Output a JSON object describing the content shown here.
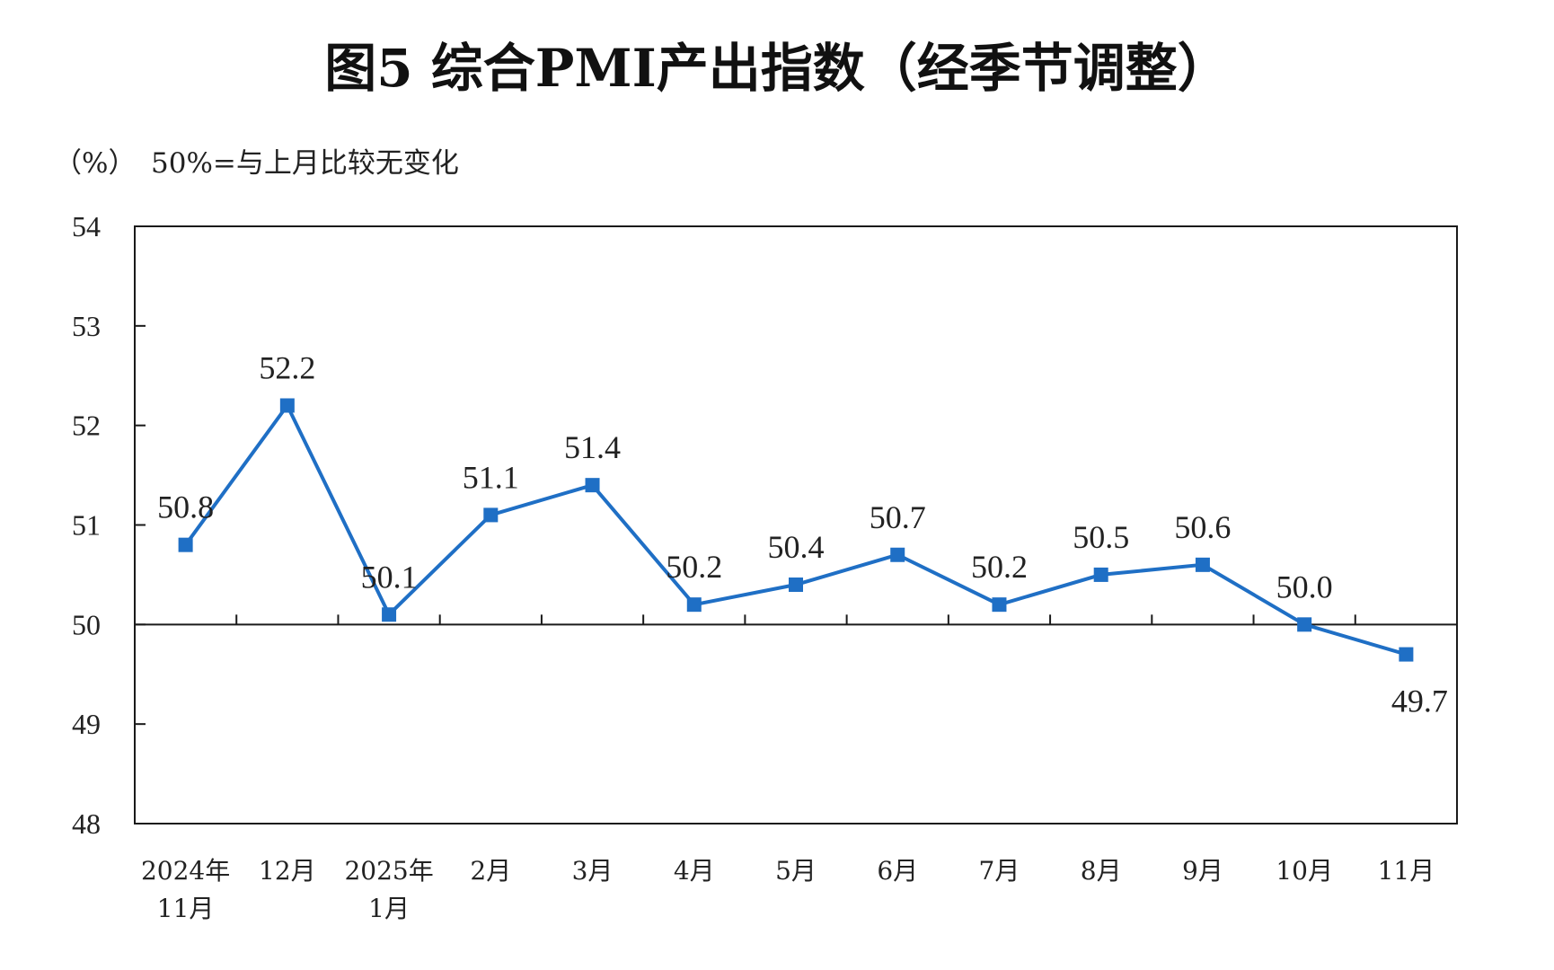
{
  "chart_data": {
    "type": "line",
    "title": "图5  综合PMI产出指数（经季节调整）",
    "unit_label": "（%）",
    "note": "50%=与上月比较无变化",
    "categories": [
      [
        "2024年",
        "11月"
      ],
      [
        "12月"
      ],
      [
        "2025年",
        "1月"
      ],
      [
        "2月"
      ],
      [
        "3月"
      ],
      [
        "4月"
      ],
      [
        "5月"
      ],
      [
        "6月"
      ],
      [
        "7月"
      ],
      [
        "8月"
      ],
      [
        "9月"
      ],
      [
        "10月"
      ],
      [
        "11月"
      ]
    ],
    "values": [
      50.8,
      52.2,
      50.1,
      51.1,
      51.4,
      50.2,
      50.4,
      50.7,
      50.2,
      50.5,
      50.6,
      50.0,
      49.7
    ],
    "value_labels": [
      "50.8",
      "52.2",
      "50.1",
      "51.1",
      "51.4",
      "50.2",
      "50.4",
      "50.7",
      "50.2",
      "50.5",
      "50.6",
      "50.0",
      "49.7"
    ],
    "ylim": [
      48,
      54
    ],
    "yticks": [
      48,
      49,
      50,
      51,
      52,
      53,
      54
    ],
    "ytick_labels": [
      "48",
      "49",
      "50",
      "51",
      "52",
      "53",
      "54"
    ],
    "reference_line": 50,
    "line_color": "#1f6fc5",
    "marker": "square",
    "grid": false,
    "legend": "none"
  }
}
